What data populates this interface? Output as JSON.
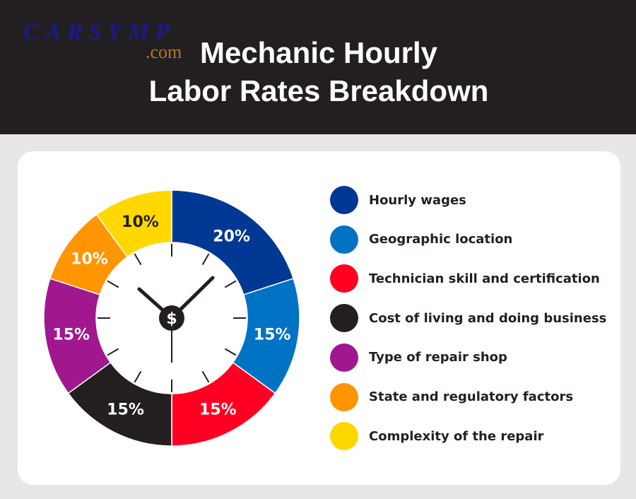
{
  "header": {
    "logo_text": "CARSYMP",
    "logo_suffix": ".com",
    "title_line1": "Mechanic Hourly",
    "title_line2": "Labor Rates Breakdown"
  },
  "chart_data": {
    "type": "pie",
    "variant": "donut-clock",
    "center_icon": "dollar-sign",
    "categories": [
      "Hourly wages",
      "Geographic location",
      "Technician skill and certification",
      "Cost of living and doing business",
      "Type of repair shop",
      "State and regulatory factors",
      "Complexity of the repair"
    ],
    "values": [
      20,
      15,
      15,
      15,
      15,
      10,
      10
    ],
    "labels": [
      "20%",
      "15%",
      "15%",
      "15%",
      "15%",
      "10%",
      "10%"
    ],
    "colors": [
      "#003893",
      "#0073c4",
      "#ff0022",
      "#231f20",
      "#a0178f",
      "#ff9500",
      "#ffd800"
    ],
    "label_colors": [
      "#ffffff",
      "#ffffff",
      "#ffffff",
      "#ffffff",
      "#ffffff",
      "#ffffff",
      "#231f20"
    ],
    "legend_position": "right"
  }
}
